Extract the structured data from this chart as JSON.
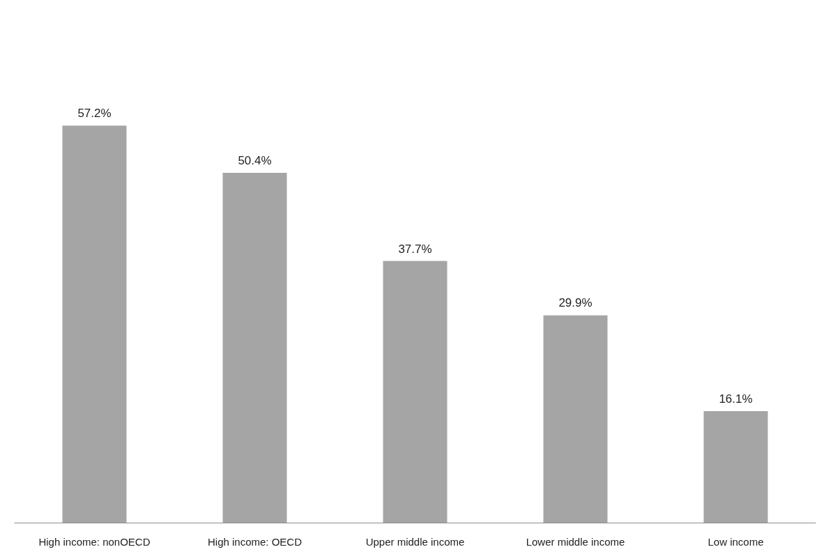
{
  "chart_data": {
    "type": "bar",
    "categories": [
      "High income: nonOECD",
      "High income: OECD",
      "Upper middle income",
      "Lower middle income",
      "Low income"
    ],
    "values": [
      57.2,
      50.4,
      37.7,
      29.9,
      16.1
    ],
    "value_labels": [
      "57.2%",
      "50.4%",
      "37.7%",
      "29.9%",
      "16.1%"
    ],
    "color": "#a5a5a5"
  }
}
